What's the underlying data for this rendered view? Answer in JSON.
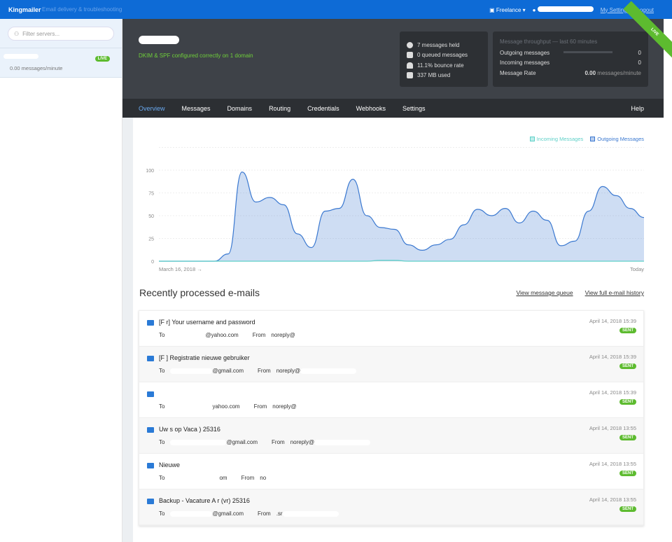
{
  "header": {
    "brand": "Kingmailer",
    "tagline": "Email delivery & troubleshooting",
    "org": "Freelance ▾",
    "my_settings": "My Settings",
    "logout": "Logout"
  },
  "sidebar": {
    "filter_placeholder": "Filter servers...",
    "server": {
      "rate": "0.00 messages/minute",
      "badge": "LIVE"
    }
  },
  "hero": {
    "dkim_status": "DKIM & SPF configured correctly on 1 domain",
    "stats": [
      "7 messages held",
      "0 queued messages",
      "11.1% bounce rate",
      "337 MB used"
    ],
    "ribbon": "LIVE",
    "throughput": {
      "title": "Message throughput — last 60 minutes",
      "outgoing_label": "Outgoing messages",
      "outgoing": "0",
      "incoming_label": "Incoming messages",
      "incoming": "0",
      "rate_label": "Message Rate",
      "rate": "0.00",
      "rate_unit": "messages/minute"
    }
  },
  "nav": {
    "tabs": [
      "Overview",
      "Messages",
      "Domains",
      "Routing",
      "Credentials",
      "Webhooks",
      "Settings"
    ],
    "help": "Help",
    "active": 0
  },
  "chart_data": {
    "type": "area",
    "x_start_label": "March 16, 2018 →",
    "x_end_label": "Today",
    "ylim": [
      0,
      105
    ],
    "yticks": [
      0,
      25,
      50,
      75,
      100
    ],
    "grid": true,
    "legend": "top-right",
    "series": [
      {
        "name": "Incoming Messages",
        "color": "#5fd0c8",
        "values": [
          0,
          0,
          0,
          0,
          0,
          0,
          0,
          0,
          0,
          0,
          0,
          0,
          0,
          0,
          0,
          0,
          1,
          1,
          0,
          0,
          0,
          0,
          0,
          0,
          0,
          0,
          0,
          0,
          0,
          0,
          0,
          0,
          0,
          0,
          0,
          0
        ]
      },
      {
        "name": "Outgoing Messages",
        "color": "#3a78d0",
        "values": [
          0,
          0,
          0,
          0,
          0,
          8,
          98,
          65,
          70,
          62,
          30,
          15,
          55,
          58,
          90,
          50,
          37,
          35,
          18,
          12,
          18,
          24,
          40,
          57,
          50,
          58,
          42,
          55,
          45,
          17,
          22,
          55,
          82,
          72,
          58,
          48
        ]
      }
    ]
  },
  "recent": {
    "title": "Recently processed e-mails",
    "view_queue": "View message queue",
    "view_history": "View full e-mail history",
    "to_label": "To",
    "from_label": "From",
    "emails": [
      {
        "subject": "[F         r] Your username and password",
        "to": "@yahoo.com",
        "from": "noreply@",
        "date": "April 14, 2018 15:39",
        "status": "SENT"
      },
      {
        "subject": "[F         ] Registratie nieuwe gebruiker",
        "to": "@gmail.com",
        "from": "noreply@",
        "date": "April 14, 2018 15:39",
        "status": "SENT"
      },
      {
        "subject": "",
        "to": "yahoo.com",
        "from": "noreply@",
        "date": "April 14, 2018 15:39",
        "status": "SENT"
      },
      {
        "subject": "Uw s          op Vaca                        ) 25316",
        "to": "@gmail.com",
        "from": "noreply@",
        "date": "April 14, 2018 13:55",
        "status": "SENT"
      },
      {
        "subject": "Nieuwe",
        "to": "om",
        "from": "no",
        "date": "April 14, 2018 13:55",
        "status": "SENT"
      },
      {
        "subject": "Backup - Vacature A                    r (vr) 25316",
        "to": "@gmail.com",
        "from": ".sr",
        "date": "April 14, 2018 13:55",
        "status": "SENT"
      }
    ]
  }
}
